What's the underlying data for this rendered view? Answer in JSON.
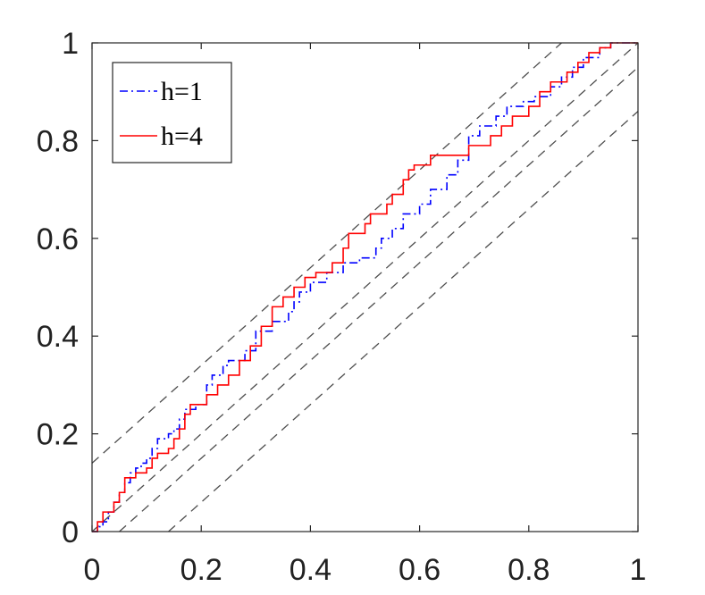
{
  "chart_data": {
    "type": "line",
    "title": "",
    "xlabel": "",
    "ylabel": "",
    "xlim": [
      0,
      1
    ],
    "ylim": [
      0,
      1
    ],
    "xticks": [
      "0",
      "0.2",
      "0.4",
      "0.6",
      "0.8",
      "1"
    ],
    "yticks": [
      "0",
      "0.2",
      "0.4",
      "0.6",
      "0.8",
      "1"
    ],
    "grid": false,
    "legend_position": "top-left",
    "series": [
      {
        "name": "h=1",
        "color": "#0000ff",
        "style": "dash-dot",
        "step": true,
        "points": [
          [
            0,
            0
          ],
          [
            0.01,
            0.01
          ],
          [
            0.02,
            0.02
          ],
          [
            0.03,
            0.04
          ],
          [
            0.04,
            0.06
          ],
          [
            0.05,
            0.08
          ],
          [
            0.06,
            0.1
          ],
          [
            0.07,
            0.12
          ],
          [
            0.08,
            0.13
          ],
          [
            0.09,
            0.14
          ],
          [
            0.1,
            0.15
          ],
          [
            0.11,
            0.17
          ],
          [
            0.12,
            0.19
          ],
          [
            0.14,
            0.2
          ],
          [
            0.15,
            0.21
          ],
          [
            0.16,
            0.23
          ],
          [
            0.17,
            0.25
          ],
          [
            0.19,
            0.26
          ],
          [
            0.21,
            0.3
          ],
          [
            0.22,
            0.32
          ],
          [
            0.24,
            0.34
          ],
          [
            0.25,
            0.35
          ],
          [
            0.28,
            0.37
          ],
          [
            0.3,
            0.41
          ],
          [
            0.33,
            0.43
          ],
          [
            0.36,
            0.45
          ],
          [
            0.37,
            0.47
          ],
          [
            0.38,
            0.49
          ],
          [
            0.4,
            0.51
          ],
          [
            0.43,
            0.53
          ],
          [
            0.46,
            0.55
          ],
          [
            0.49,
            0.56
          ],
          [
            0.52,
            0.58
          ],
          [
            0.53,
            0.6
          ],
          [
            0.55,
            0.62
          ],
          [
            0.57,
            0.65
          ],
          [
            0.6,
            0.67
          ],
          [
            0.62,
            0.7
          ],
          [
            0.65,
            0.73
          ],
          [
            0.67,
            0.76
          ],
          [
            0.69,
            0.81
          ],
          [
            0.71,
            0.83
          ],
          [
            0.74,
            0.85
          ],
          [
            0.76,
            0.87
          ],
          [
            0.79,
            0.88
          ],
          [
            0.81,
            0.89
          ],
          [
            0.84,
            0.91
          ],
          [
            0.86,
            0.93
          ],
          [
            0.88,
            0.95
          ],
          [
            0.9,
            0.97
          ],
          [
            0.93,
            0.99
          ],
          [
            0.95,
            1
          ],
          [
            1,
            1
          ]
        ]
      },
      {
        "name": "h=4",
        "color": "#ff0000",
        "style": "solid",
        "step": true,
        "points": [
          [
            0,
            0
          ],
          [
            0.01,
            0.02
          ],
          [
            0.02,
            0.04
          ],
          [
            0.04,
            0.06
          ],
          [
            0.05,
            0.08
          ],
          [
            0.06,
            0.11
          ],
          [
            0.08,
            0.12
          ],
          [
            0.1,
            0.13
          ],
          [
            0.11,
            0.15
          ],
          [
            0.12,
            0.16
          ],
          [
            0.14,
            0.17
          ],
          [
            0.15,
            0.19
          ],
          [
            0.16,
            0.21
          ],
          [
            0.17,
            0.24
          ],
          [
            0.18,
            0.26
          ],
          [
            0.21,
            0.28
          ],
          [
            0.23,
            0.3
          ],
          [
            0.25,
            0.32
          ],
          [
            0.27,
            0.35
          ],
          [
            0.29,
            0.38
          ],
          [
            0.31,
            0.42
          ],
          [
            0.33,
            0.46
          ],
          [
            0.35,
            0.48
          ],
          [
            0.37,
            0.5
          ],
          [
            0.39,
            0.52
          ],
          [
            0.41,
            0.53
          ],
          [
            0.44,
            0.55
          ],
          [
            0.46,
            0.58
          ],
          [
            0.47,
            0.61
          ],
          [
            0.5,
            0.63
          ],
          [
            0.51,
            0.65
          ],
          [
            0.54,
            0.67
          ],
          [
            0.55,
            0.69
          ],
          [
            0.57,
            0.72
          ],
          [
            0.58,
            0.74
          ],
          [
            0.59,
            0.75
          ],
          [
            0.62,
            0.77
          ],
          [
            0.69,
            0.79
          ],
          [
            0.73,
            0.81
          ],
          [
            0.75,
            0.83
          ],
          [
            0.77,
            0.85
          ],
          [
            0.8,
            0.87
          ],
          [
            0.82,
            0.9
          ],
          [
            0.84,
            0.92
          ],
          [
            0.87,
            0.94
          ],
          [
            0.89,
            0.96
          ],
          [
            0.91,
            0.98
          ],
          [
            0.93,
            0.99
          ],
          [
            0.95,
            1
          ],
          [
            1,
            1
          ]
        ]
      }
    ],
    "reference_lines": [
      {
        "color": "#4d4d4d",
        "style": "dashed",
        "x": [
          0,
          0.86
        ],
        "y": [
          0.14,
          1
        ]
      },
      {
        "color": "#4d4d4d",
        "style": "dashed",
        "x": [
          0,
          1
        ],
        "y": [
          0,
          1
        ]
      },
      {
        "color": "#4d4d4d",
        "style": "dashed",
        "x": [
          0.05,
          1
        ],
        "y": [
          0,
          0.95
        ]
      },
      {
        "color": "#4d4d4d",
        "style": "dashed",
        "x": [
          0.14,
          1
        ],
        "y": [
          0,
          0.86
        ]
      }
    ]
  }
}
